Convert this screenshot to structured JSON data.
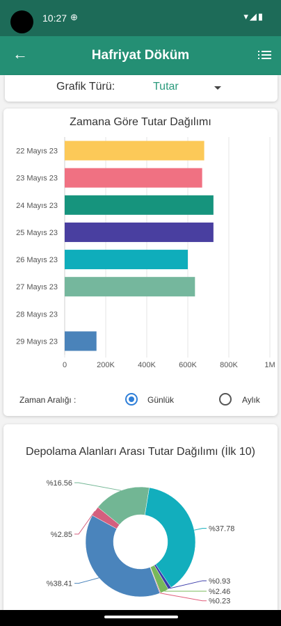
{
  "status_bar": {
    "time": "10:27",
    "globe": "⊕",
    "icons": "▾◢▮"
  },
  "app_bar": {
    "title": "Hafriyat Döküm"
  },
  "chart_type_selector": {
    "label": "Grafik Türü:",
    "value": "Tutar"
  },
  "bar_section": {
    "time_range_label": "Zaman Aralığı :",
    "options": [
      {
        "label": "Günlük",
        "checked": true
      },
      {
        "label": "Aylık",
        "checked": false
      }
    ]
  },
  "pie_section": {},
  "chart_data": [
    {
      "type": "bar",
      "orientation": "horizontal",
      "title": "Zamana Göre Tutar Dağılımı",
      "categories": [
        "22 Mayıs 23",
        "23 Mayıs 23",
        "24 Mayıs 23",
        "25 Mayıs 23",
        "26 Mayıs 23",
        "27 Mayıs 23",
        "28 Mayıs 23",
        "29 Mayıs 23"
      ],
      "values": [
        680000,
        670000,
        725000,
        725000,
        600000,
        635000,
        0,
        155000
      ],
      "colors": [
        "#fcc958",
        "#f07182",
        "#16947d",
        "#493fa0",
        "#0fadbb",
        "#75b79d",
        "#cccccc",
        "#4a83ba"
      ],
      "xlim": [
        0,
        1000000
      ],
      "xticks": [
        0,
        200000,
        400000,
        600000,
        800000,
        1000000
      ],
      "xtick_labels": [
        "0",
        "200K",
        "400K",
        "600K",
        "800K",
        "1M"
      ],
      "grid": true
    },
    {
      "type": "pie",
      "style": "donut",
      "title": "Depolama Alanları Arası Tutar Dağılımı (İlk 10)",
      "slices": [
        {
          "label": "%37.78",
          "value": 37.78,
          "color": "#12aebd"
        },
        {
          "label": "%0.93",
          "value": 0.93,
          "color": "#3b3caa"
        },
        {
          "label": "%2.46",
          "value": 2.46,
          "color": "#78b85a"
        },
        {
          "label": "%0.23",
          "value": 0.23,
          "color": "#e05a78"
        },
        {
          "label": "%38.41",
          "value": 38.41,
          "color": "#4a84bc"
        },
        {
          "label": "%2.85",
          "value": 2.85,
          "color": "#d45f7e"
        },
        {
          "label": "%16.56",
          "value": 16.56,
          "color": "#72b694"
        }
      ]
    }
  ]
}
